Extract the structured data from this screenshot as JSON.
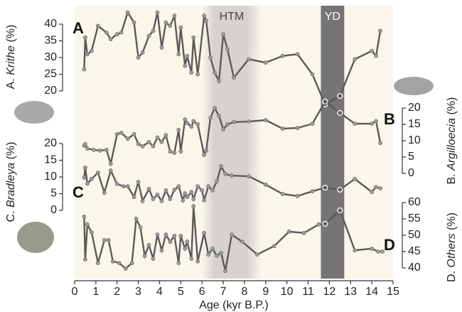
{
  "chart_data": {
    "type": "line",
    "xlabel": "Age (kyr B.P.)",
    "xlim": [
      0,
      15
    ],
    "xticks": [
      0,
      1,
      2,
      3,
      4,
      5,
      6,
      7,
      8,
      9,
      10,
      11,
      12,
      13,
      14,
      15
    ],
    "bands": [
      {
        "label": "HTM",
        "from": 6,
        "to": 8.8,
        "color": "#d6d3cf"
      },
      {
        "label": "YD",
        "from": 11.6,
        "to": 12.7,
        "color": "#767474"
      }
    ],
    "line_color": "#5a5a5a",
    "panels": [
      {
        "letter": "A",
        "label": {
          "prefix": "A.",
          "taxon": "Krithe",
          "unit": "(%)"
        },
        "side": "left",
        "ylim": [
          20,
          40
        ],
        "yticks": [
          20,
          25,
          30,
          35,
          40
        ],
        "x": [
          0.45,
          0.5,
          0.6,
          0.8,
          1.1,
          1.5,
          1.7,
          2.0,
          2.2,
          2.5,
          2.8,
          3.0,
          3.2,
          3.5,
          3.7,
          3.9,
          4.1,
          4.3,
          4.5,
          4.7,
          4.9,
          5.0,
          5.2,
          5.3,
          5.5,
          5.6,
          5.8,
          6.1,
          6.2,
          6.4,
          6.6,
          6.8,
          7.0,
          7.2,
          7.5,
          8.2,
          9.0,
          9.8,
          10.5,
          11.2,
          11.8,
          12.5,
          13.2,
          14.0,
          14.2,
          14.4
        ],
        "values": [
          26.5,
          36,
          31,
          32,
          39.5,
          37.5,
          35.5,
          37,
          37.5,
          43.5,
          40.5,
          30,
          31.5,
          36.5,
          38,
          43.5,
          33,
          40.5,
          39.5,
          42.5,
          31,
          39,
          27.5,
          30.5,
          25.5,
          36,
          25,
          42.5,
          41,
          30,
          25.5,
          23,
          37,
          32.5,
          24,
          29.5,
          28.5,
          30.5,
          31,
          25,
          16,
          18.5,
          29.5,
          32,
          30.5,
          38
        ]
      },
      {
        "letter": "B",
        "label": {
          "prefix": "B.",
          "taxon": "Argilloecia",
          "unit": "(%)"
        },
        "side": "right",
        "ylim": [
          0,
          20
        ],
        "yticks": [
          0,
          5,
          10,
          15,
          20
        ],
        "x": [
          0.45,
          0.5,
          0.6,
          0.9,
          1.2,
          1.5,
          1.7,
          2.0,
          2.2,
          2.5,
          2.8,
          3.0,
          3.2,
          3.5,
          3.7,
          3.9,
          4.1,
          4.3,
          4.5,
          4.7,
          4.9,
          5.0,
          5.2,
          5.3,
          5.5,
          5.6,
          5.8,
          6.1,
          6.2,
          6.4,
          6.6,
          6.8,
          7.0,
          7.2,
          7.5,
          8.2,
          9.0,
          9.8,
          10.5,
          11.2,
          11.8,
          12.5,
          13.2,
          14.0,
          14.2,
          14.4
        ],
        "values": [
          8.5,
          9,
          7.6,
          7.2,
          7,
          7.2,
          3,
          12,
          12.4,
          10.6,
          12,
          9,
          8.3,
          9.6,
          8.3,
          11,
          9.6,
          11.7,
          6.7,
          6.3,
          13.3,
          6.7,
          16.5,
          15.4,
          14.3,
          16,
          15,
          5.7,
          7,
          17,
          20,
          17.6,
          13.5,
          15,
          15.7,
          15.9,
          16.3,
          13.7,
          13.9,
          15.2,
          22,
          18.5,
          15.2,
          15.2,
          16,
          9.3
        ]
      },
      {
        "letter": "C",
        "label": {
          "prefix": "C.",
          "taxon": "Bradleya",
          "unit": "(%)"
        },
        "side": "left",
        "ylim": [
          0,
          20
        ],
        "yticks": [
          0,
          5,
          10,
          15,
          20
        ],
        "x": [
          0.45,
          0.5,
          0.6,
          0.8,
          1.1,
          1.4,
          1.7,
          2.0,
          2.3,
          2.5,
          2.8,
          3.0,
          3.2,
          3.5,
          3.7,
          3.9,
          4.1,
          4.3,
          4.5,
          4.7,
          4.9,
          5.1,
          5.2,
          5.3,
          5.5,
          5.6,
          5.8,
          6.0,
          6.1,
          6.3,
          6.5,
          6.7,
          6.9,
          7.1,
          7.4,
          8.2,
          9.0,
          9.8,
          10.5,
          11.2,
          11.8,
          12.5,
          13.2,
          14.0,
          14.2,
          14.4
        ],
        "values": [
          9.8,
          12.8,
          8,
          9.4,
          11.3,
          5.3,
          11.9,
          7.9,
          7.2,
          7.2,
          4,
          8.5,
          2.8,
          6.4,
          3.4,
          4.7,
          2.8,
          6,
          3.4,
          6.2,
          7.2,
          3,
          5.1,
          4,
          5.5,
          3.4,
          7.2,
          6,
          3,
          7.2,
          6,
          8.7,
          13.2,
          10.9,
          10.4,
          10.2,
          7.7,
          4.9,
          4.3,
          5.7,
          6.8,
          6.2,
          9.4,
          5.5,
          7,
          6.6
        ]
      },
      {
        "letter": "D",
        "label": {
          "prefix": "D.",
          "taxon": "Others",
          "unit": "(%)"
        },
        "side": "right",
        "ylim": [
          40,
          60
        ],
        "yticks": [
          40,
          45,
          50,
          55,
          60
        ],
        "x": [
          0.45,
          0.5,
          0.6,
          0.8,
          1.1,
          1.4,
          1.6,
          1.8,
          2.1,
          2.4,
          2.7,
          2.9,
          3.1,
          3.3,
          3.5,
          3.7,
          3.9,
          4.1,
          4.3,
          4.5,
          4.7,
          4.9,
          5.0,
          5.2,
          5.3,
          5.5,
          5.6,
          5.8,
          6.1,
          6.3,
          6.5,
          6.7,
          6.9,
          7.1,
          7.4,
          7.9,
          8.6,
          9.4,
          10.1,
          10.8,
          11.5,
          11.8,
          12.5,
          13.2,
          14.0,
          14.3,
          14.5
        ],
        "values": [
          55.7,
          42.6,
          53.3,
          50.9,
          41.5,
          48.5,
          48.5,
          42,
          41.5,
          39.8,
          41.5,
          55,
          52.4,
          43.7,
          47,
          42.8,
          50.2,
          45.4,
          50.2,
          48,
          49.8,
          41.5,
          49.8,
          45.9,
          48,
          42.8,
          58.9,
          42,
          50.7,
          44.1,
          45.9,
          43.7,
          44.6,
          39.1,
          50.2,
          48,
          44.1,
          46.7,
          51.1,
          50.7,
          53.3,
          53.5,
          57.6,
          45.4,
          45.9,
          45,
          45
        ]
      }
    ]
  }
}
